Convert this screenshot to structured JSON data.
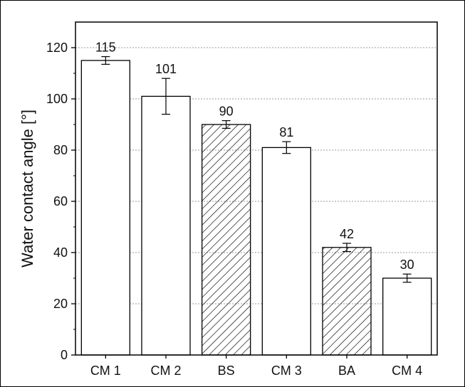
{
  "chart_data": {
    "type": "bar",
    "title": "",
    "xlabel": "",
    "ylabel": "Water contact angle [°]",
    "ylim": [
      0,
      130
    ],
    "yticks": [
      0,
      20,
      40,
      60,
      80,
      100,
      120
    ],
    "grid": true,
    "categories": [
      "CM 1",
      "CM 2",
      "BS",
      "CM 3",
      "BA",
      "CM 4"
    ],
    "values": [
      115,
      101,
      90,
      81,
      42,
      30
    ],
    "errors": [
      1.5,
      7,
      1.5,
      2.3,
      1.6,
      1.6
    ],
    "value_labels": [
      "115",
      "101",
      "90",
      "81",
      "42",
      "30"
    ],
    "fill": [
      "plain",
      "plain",
      "hatched",
      "plain",
      "hatched",
      "plain"
    ],
    "colors": {
      "bar_fill": "#ffffff",
      "bar_stroke": "#000000",
      "hatch": "#000000",
      "grid": "#9a9a9a"
    }
  }
}
